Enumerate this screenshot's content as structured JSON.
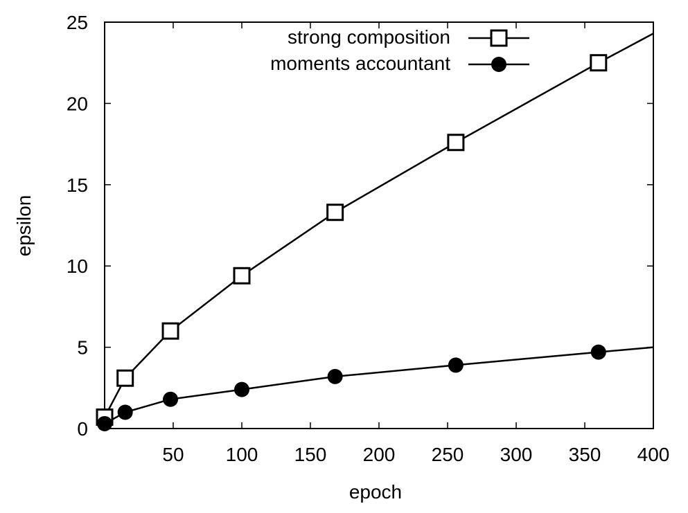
{
  "chart_data": {
    "type": "line",
    "xlabel": "epoch",
    "ylabel": "epsilon",
    "xlim": [
      0,
      400
    ],
    "ylim": [
      0,
      25
    ],
    "xticks": [
      50,
      100,
      150,
      200,
      250,
      300,
      350,
      400
    ],
    "yticks": [
      0,
      5,
      10,
      15,
      20,
      25
    ],
    "legend_position": "top-right",
    "series": [
      {
        "name": "strong composition",
        "marker": "open-square",
        "color": "#000000",
        "points": [
          [
            0,
            0.7
          ],
          [
            15,
            3.1
          ],
          [
            48,
            6.0
          ],
          [
            100,
            9.4
          ],
          [
            168,
            13.3
          ],
          [
            256,
            17.6
          ],
          [
            360,
            22.5
          ]
        ],
        "curve": [
          [
            0,
            0.7
          ],
          [
            15,
            3.1
          ],
          [
            48,
            6.0
          ],
          [
            100,
            9.4
          ],
          [
            168,
            13.3
          ],
          [
            256,
            17.6
          ],
          [
            360,
            22.5
          ],
          [
            400,
            24.3
          ]
        ]
      },
      {
        "name": "moments accountant",
        "marker": "filled-circle",
        "color": "#000000",
        "points": [
          [
            0,
            0.3
          ],
          [
            15,
            1.0
          ],
          [
            48,
            1.8
          ],
          [
            100,
            2.4
          ],
          [
            168,
            3.2
          ],
          [
            256,
            3.9
          ],
          [
            360,
            4.7
          ]
        ],
        "curve": [
          [
            0,
            0.3
          ],
          [
            15,
            1.0
          ],
          [
            48,
            1.8
          ],
          [
            100,
            2.4
          ],
          [
            168,
            3.2
          ],
          [
            256,
            3.9
          ],
          [
            360,
            4.7
          ],
          [
            400,
            5.0
          ]
        ]
      }
    ]
  }
}
